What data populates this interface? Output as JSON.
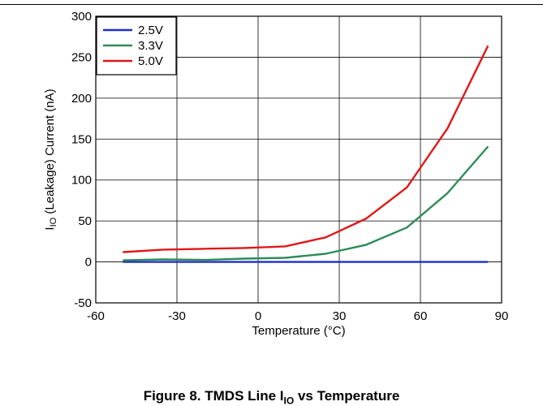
{
  "caption": {
    "main": "Figure 8. TMDS Line I",
    "sub": "IO",
    "tail": " vs Temperature"
  },
  "chart_data": {
    "type": "line",
    "xlabel": "Temperature (°C)",
    "ylabel_sub": "IO",
    "ylabel_rest": " (Leakage) Current (nA)",
    "xlim": [
      -60,
      90
    ],
    "ylim": [
      -50,
      300
    ],
    "xticks": [
      -60,
      -30,
      0,
      30,
      60,
      90
    ],
    "yticks": [
      -50,
      0,
      50,
      100,
      150,
      200,
      250,
      300
    ],
    "grid": true,
    "legend_position": "top-left",
    "series": [
      {
        "name": "2.5V",
        "color": "#1f2fc8",
        "x": [
          -50,
          -35,
          -20,
          -5,
          10,
          25,
          40,
          55,
          70,
          85
        ],
        "y": [
          0,
          0,
          0,
          0,
          0,
          0,
          0,
          0,
          0,
          0
        ]
      },
      {
        "name": "3.3V",
        "color": "#2e8b57",
        "x": [
          -50,
          -35,
          -20,
          -5,
          10,
          25,
          40,
          55,
          70,
          85
        ],
        "y": [
          2,
          3,
          2.5,
          4,
          5,
          10,
          21,
          42,
          84,
          141
        ]
      },
      {
        "name": "5.0V",
        "color": "#e01818",
        "x": [
          -50,
          -35,
          -20,
          -5,
          10,
          25,
          40,
          55,
          70,
          85
        ],
        "y": [
          12,
          15,
          16,
          17,
          19,
          30,
          53,
          91,
          163,
          264
        ]
      }
    ]
  }
}
